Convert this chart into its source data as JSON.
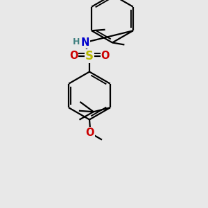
{
  "background_color": "#e8e8e8",
  "bond_color": "#000000",
  "S_color": "#b8b800",
  "N_color": "#0000cc",
  "O_color": "#cc0000",
  "H_color": "#408080",
  "line_width": 1.6,
  "figsize": [
    3.0,
    3.0
  ],
  "dpi": 100,
  "xlim": [
    0.0,
    1.0
  ],
  "ylim": [
    0.0,
    1.0
  ]
}
